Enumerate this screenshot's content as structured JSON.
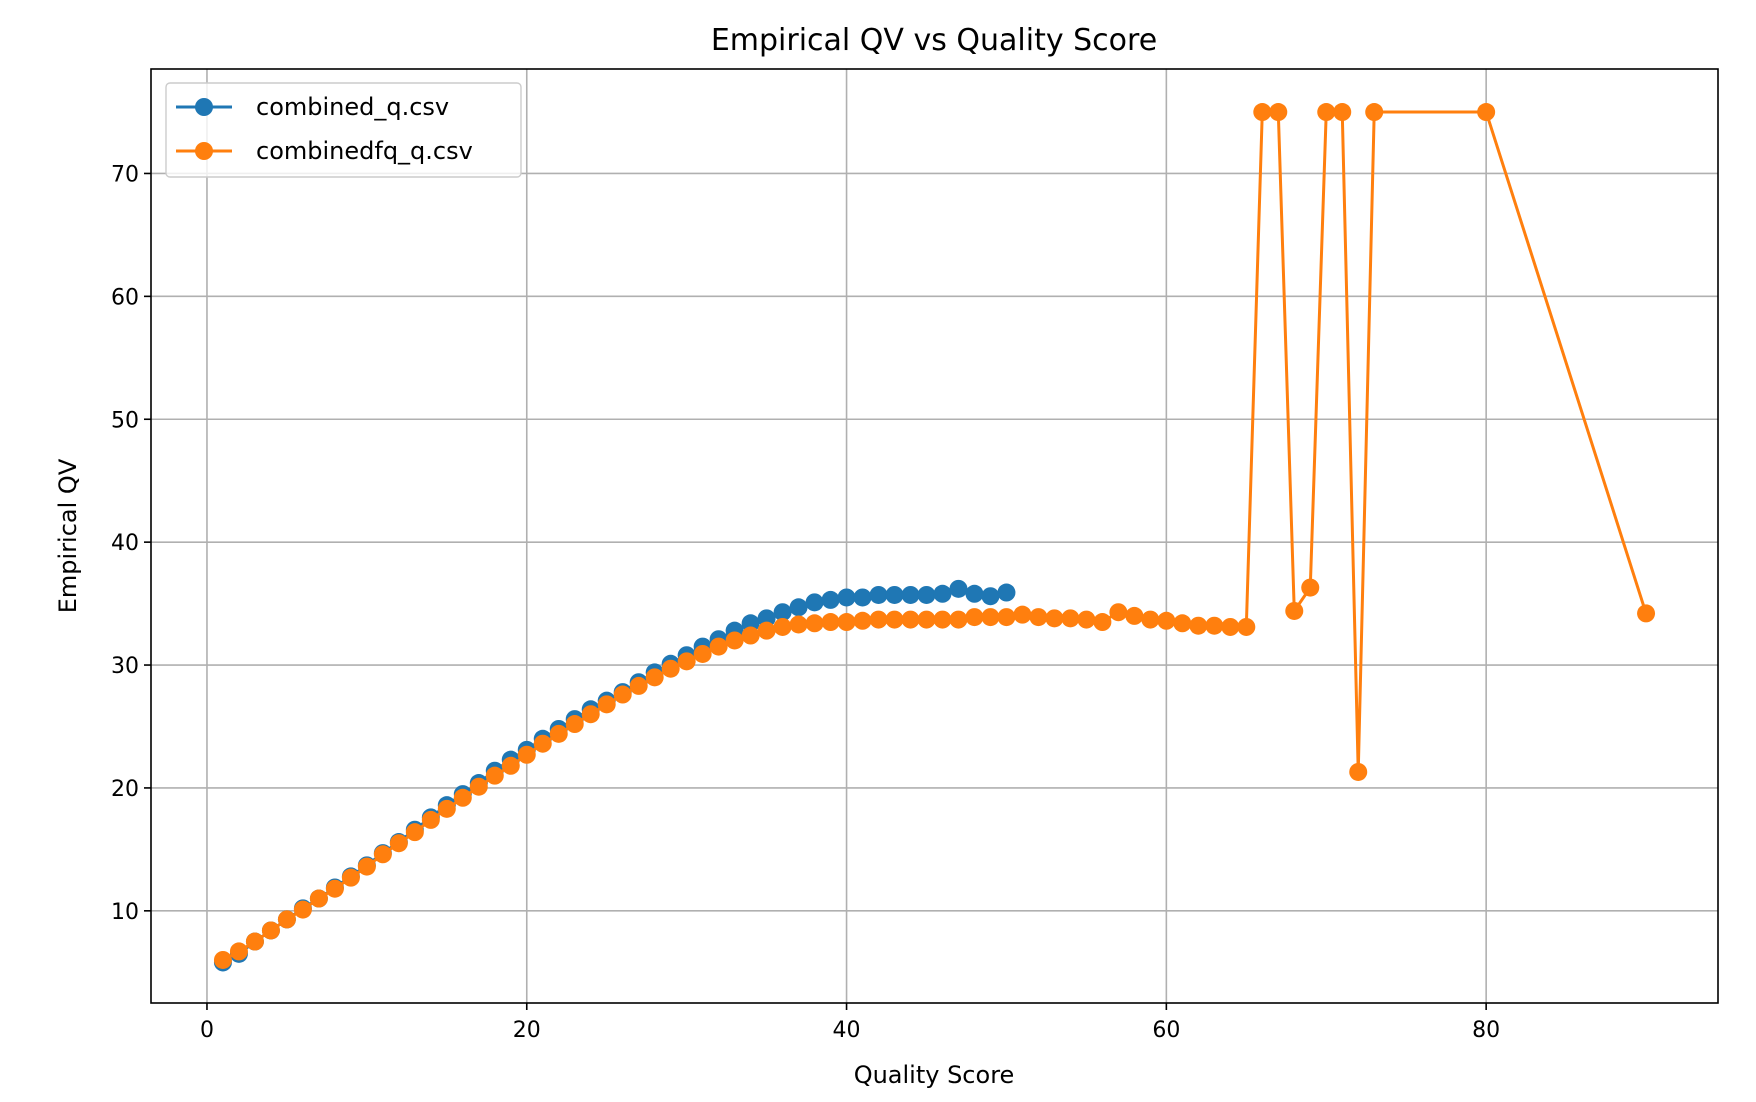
{
  "chart_data": {
    "type": "line",
    "title": "Empirical QV vs Quality Score",
    "xlabel": "Quality Score",
    "ylabel": "Empirical QV",
    "xlim": [
      -3.5,
      94.5
    ],
    "ylim": [
      2.5,
      78.5
    ],
    "xticks": [
      0,
      20,
      40,
      60,
      80
    ],
    "yticks": [
      10,
      20,
      30,
      40,
      50,
      60,
      70
    ],
    "grid": true,
    "legend_position": "top-left",
    "series": [
      {
        "name": "combined_q.csv",
        "color": "#1f77b4",
        "x": [
          1,
          2,
          3,
          4,
          5,
          6,
          7,
          8,
          9,
          10,
          11,
          12,
          13,
          14,
          15,
          16,
          17,
          18,
          19,
          20,
          21,
          22,
          23,
          24,
          25,
          26,
          27,
          28,
          29,
          30,
          31,
          32,
          33,
          34,
          35,
          36,
          37,
          38,
          39,
          40,
          41,
          42,
          43,
          44,
          45,
          46,
          47,
          48,
          49,
          50
        ],
        "y": [
          5.8,
          6.5,
          7.5,
          8.4,
          9.3,
          10.2,
          11.0,
          11.9,
          12.8,
          13.7,
          14.7,
          15.6,
          16.6,
          17.6,
          18.6,
          19.5,
          20.4,
          21.4,
          22.3,
          23.1,
          24.0,
          24.8,
          25.6,
          26.4,
          27.1,
          27.8,
          28.6,
          29.4,
          30.1,
          30.8,
          31.5,
          32.1,
          32.8,
          33.4,
          33.8,
          34.3,
          34.7,
          35.1,
          35.3,
          35.5,
          35.5,
          35.7,
          35.7,
          35.7,
          35.7,
          35.8,
          36.2,
          35.8,
          35.6,
          35.9
        ]
      },
      {
        "name": "combinedfq_q.csv",
        "color": "#ff7f0e",
        "x": [
          1,
          2,
          3,
          4,
          5,
          6,
          7,
          8,
          9,
          10,
          11,
          12,
          13,
          14,
          15,
          16,
          17,
          18,
          19,
          20,
          21,
          22,
          23,
          24,
          25,
          26,
          27,
          28,
          29,
          30,
          31,
          32,
          33,
          34,
          35,
          36,
          37,
          38,
          39,
          40,
          41,
          42,
          43,
          44,
          45,
          46,
          47,
          48,
          49,
          50,
          51,
          52,
          53,
          54,
          55,
          56,
          57,
          58,
          59,
          60,
          61,
          62,
          63,
          64,
          65,
          66,
          67,
          68,
          69,
          70,
          71,
          72,
          73,
          80,
          90
        ],
        "y": [
          6.0,
          6.7,
          7.5,
          8.4,
          9.3,
          10.1,
          11.0,
          11.8,
          12.7,
          13.6,
          14.6,
          15.5,
          16.4,
          17.4,
          18.3,
          19.2,
          20.1,
          21.0,
          21.8,
          22.7,
          23.6,
          24.4,
          25.2,
          26.0,
          26.8,
          27.6,
          28.3,
          29.0,
          29.7,
          30.3,
          30.9,
          31.5,
          32.0,
          32.4,
          32.8,
          33.1,
          33.3,
          33.4,
          33.5,
          33.5,
          33.6,
          33.7,
          33.7,
          33.7,
          33.7,
          33.7,
          33.7,
          33.9,
          33.9,
          33.9,
          34.1,
          33.9,
          33.8,
          33.8,
          33.7,
          33.5,
          34.3,
          34.0,
          33.7,
          33.6,
          33.4,
          33.2,
          33.2,
          33.1,
          33.1,
          75.0,
          75.0,
          34.4,
          36.3,
          75.0,
          75.0,
          21.3,
          75.0,
          75.0,
          34.2
        ]
      }
    ]
  }
}
